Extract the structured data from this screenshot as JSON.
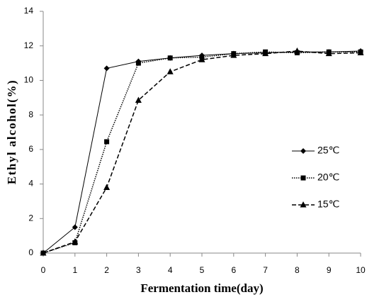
{
  "chart_data": {
    "type": "line",
    "x_label": "Fermentation time(day)",
    "y_label": "Ethyl alcohol(%)",
    "x": [
      0,
      1,
      2,
      3,
      4,
      5,
      6,
      7,
      8,
      9,
      10
    ],
    "series": [
      {
        "name": "25℃",
        "color": "#000000",
        "marker": "diamond",
        "line_style": "solid",
        "values": [
          0,
          1.5,
          10.7,
          11.1,
          11.3,
          11.45,
          11.55,
          11.6,
          11.65,
          11.65,
          11.7
        ]
      },
      {
        "name": "20℃",
        "color": "#000000",
        "marker": "square",
        "line_style": "dotted",
        "values": [
          0,
          0.6,
          6.45,
          11.0,
          11.3,
          11.35,
          11.55,
          11.65,
          11.6,
          11.65,
          11.65
        ]
      },
      {
        "name": "15℃",
        "color": "#000000",
        "marker": "triangle",
        "line_style": "dashed",
        "values": [
          0,
          0.65,
          3.8,
          8.85,
          10.5,
          11.2,
          11.45,
          11.55,
          11.7,
          11.55,
          11.6
        ]
      }
    ],
    "xlim": [
      0,
      10
    ],
    "xticks": [
      0,
      1,
      2,
      3,
      4,
      5,
      6,
      7,
      8,
      9,
      10
    ],
    "ylim": [
      0,
      14
    ],
    "yticks": [
      0,
      2,
      4,
      6,
      8,
      10,
      12,
      14
    ],
    "grid": false,
    "legend": "right"
  }
}
